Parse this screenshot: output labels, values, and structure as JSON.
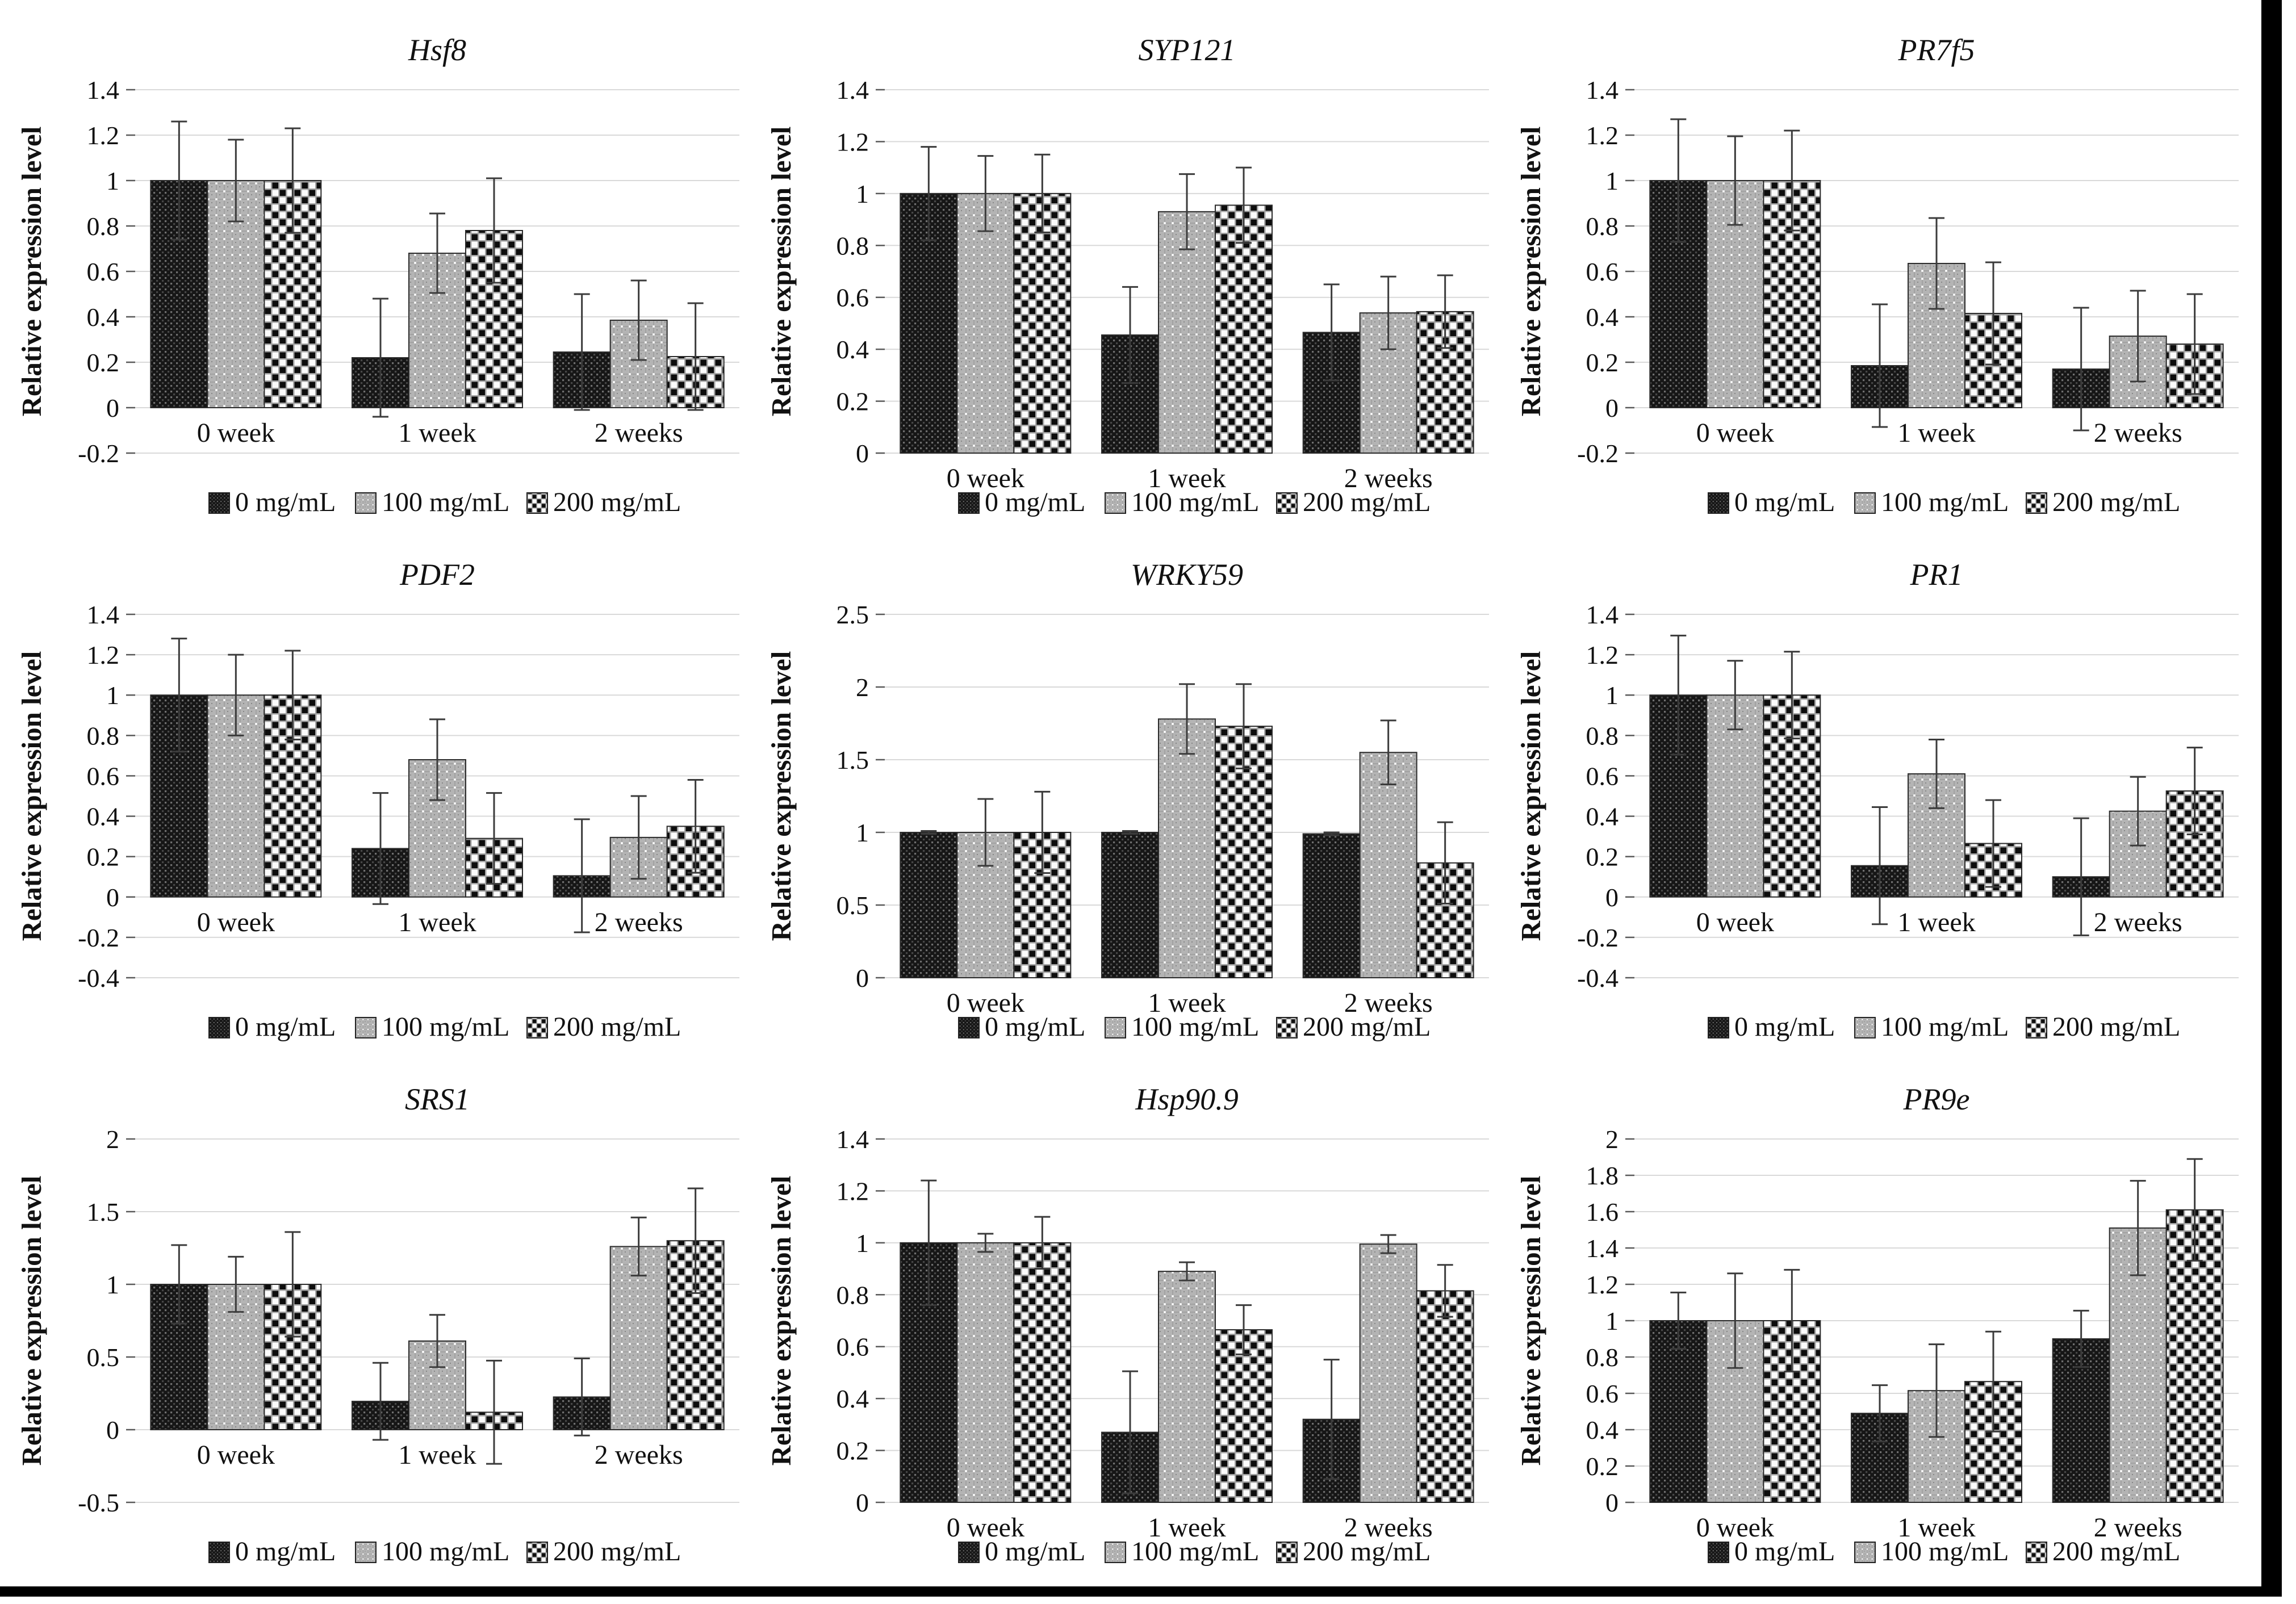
{
  "page": {
    "background": "#ffffff",
    "frame_color": "#000000"
  },
  "colors": {
    "grid": "#d9d9d9",
    "axis_tick": "#595959",
    "text": "#111111",
    "error_bar": "#3b3b3b",
    "bar_outline": "#2b2b2b"
  },
  "patterns": {
    "0 mg/mL": "dark-weave-pattern",
    "100 mg/mL": "light-gray-dot-grid-pattern",
    "200 mg/mL": "black-white-checkerboard-pattern"
  },
  "chart_data": [
    {
      "type": "bar",
      "title": "Hsf8",
      "ylabel": "Relative expression level",
      "categories": [
        "0 week",
        "1 week",
        "2 weeks"
      ],
      "ylim": [
        -0.2,
        1.4
      ],
      "ytick_step": 0.2,
      "grid": true,
      "legend_position": "bottom",
      "series": [
        {
          "name": "0 mg/mL",
          "values": [
            1.0,
            0.22,
            0.245
          ],
          "errors": [
            0.26,
            0.26,
            0.255
          ]
        },
        {
          "name": "100 mg/mL",
          "values": [
            1.0,
            0.68,
            0.385
          ],
          "errors": [
            0.18,
            0.175,
            0.175
          ]
        },
        {
          "name": "200 mg/mL",
          "values": [
            1.0,
            0.78,
            0.225
          ],
          "errors": [
            0.23,
            0.23,
            0.235
          ]
        }
      ]
    },
    {
      "type": "bar",
      "title": "SYP121",
      "ylabel": "Relative expression level",
      "categories": [
        "0 week",
        "1 week",
        "2 weeks"
      ],
      "ylim": [
        0,
        1.4
      ],
      "ytick_step": 0.2,
      "grid": true,
      "legend_position": "bottom",
      "series": [
        {
          "name": "0 mg/mL",
          "values": [
            1.0,
            0.455,
            0.465
          ],
          "errors": [
            0.18,
            0.185,
            0.185
          ]
        },
        {
          "name": "100 mg/mL",
          "values": [
            1.0,
            0.93,
            0.54
          ],
          "errors": [
            0.145,
            0.145,
            0.14
          ]
        },
        {
          "name": "200 mg/mL",
          "values": [
            1.0,
            0.955,
            0.545
          ],
          "errors": [
            0.15,
            0.145,
            0.14
          ]
        }
      ]
    },
    {
      "type": "bar",
      "title": "PR7f5",
      "ylabel": "Relative expression level",
      "categories": [
        "0 week",
        "1 week",
        "2 weeks"
      ],
      "ylim": [
        -0.2,
        1.4
      ],
      "ytick_step": 0.2,
      "grid": true,
      "legend_position": "bottom",
      "series": [
        {
          "name": "0 mg/mL",
          "values": [
            1.0,
            0.185,
            0.17
          ],
          "errors": [
            0.27,
            0.27,
            0.27
          ]
        },
        {
          "name": "100 mg/mL",
          "values": [
            1.0,
            0.635,
            0.315
          ],
          "errors": [
            0.195,
            0.2,
            0.2
          ]
        },
        {
          "name": "200 mg/mL",
          "values": [
            1.0,
            0.415,
            0.28
          ],
          "errors": [
            0.22,
            0.225,
            0.22
          ]
        }
      ]
    },
    {
      "type": "bar",
      "title": "PDF2",
      "ylabel": "Relative expression level",
      "categories": [
        "0 week",
        "1 week",
        "2 weeks"
      ],
      "ylim": [
        -0.4,
        1.4
      ],
      "ytick_step": 0.2,
      "grid": true,
      "legend_position": "bottom",
      "series": [
        {
          "name": "0 mg/mL",
          "values": [
            1.0,
            0.24,
            0.105
          ],
          "errors": [
            0.28,
            0.275,
            0.28
          ]
        },
        {
          "name": "100 mg/mL",
          "values": [
            1.0,
            0.68,
            0.295
          ],
          "errors": [
            0.2,
            0.2,
            0.205
          ]
        },
        {
          "name": "200 mg/mL",
          "values": [
            1.0,
            0.29,
            0.35
          ],
          "errors": [
            0.22,
            0.225,
            0.23
          ]
        }
      ]
    },
    {
      "type": "bar",
      "title": "WRKY59",
      "ylabel": "Relative expression level",
      "categories": [
        "0 week",
        "1 week",
        "2 weeks"
      ],
      "ylim": [
        0,
        2.5
      ],
      "ytick_step": 0.5,
      "grid": true,
      "legend_position": "bottom",
      "series": [
        {
          "name": "0 mg/mL",
          "values": [
            1.0,
            1.0,
            0.99
          ],
          "errors": [
            0.01,
            0.01,
            0.01
          ]
        },
        {
          "name": "100 mg/mL",
          "values": [
            1.0,
            1.78,
            1.55
          ],
          "errors": [
            0.23,
            0.24,
            0.22
          ]
        },
        {
          "name": "200 mg/mL",
          "values": [
            1.0,
            1.73,
            0.79
          ],
          "errors": [
            0.28,
            0.29,
            0.28
          ]
        }
      ]
    },
    {
      "type": "bar",
      "title": "PR1",
      "ylabel": "Relative expression level",
      "categories": [
        "0 week",
        "1 week",
        "2 weeks"
      ],
      "ylim": [
        -0.4,
        1.4
      ],
      "ytick_step": 0.2,
      "grid": true,
      "legend_position": "bottom",
      "series": [
        {
          "name": "0 mg/mL",
          "values": [
            1.0,
            0.155,
            0.1
          ],
          "errors": [
            0.295,
            0.29,
            0.29
          ]
        },
        {
          "name": "100 mg/mL",
          "values": [
            1.0,
            0.61,
            0.425
          ],
          "errors": [
            0.17,
            0.17,
            0.17
          ]
        },
        {
          "name": "200 mg/mL",
          "values": [
            1.0,
            0.265,
            0.525
          ],
          "errors": [
            0.215,
            0.215,
            0.215
          ]
        }
      ]
    },
    {
      "type": "bar",
      "title": "SRS1",
      "ylabel": "Relative expression level",
      "categories": [
        "0 week",
        "1 week",
        "2 weeks"
      ],
      "ylim": [
        -0.5,
        2
      ],
      "ytick_step": 0.5,
      "grid": true,
      "legend_position": "bottom",
      "series": [
        {
          "name": "0 mg/mL",
          "values": [
            1.0,
            0.195,
            0.225
          ],
          "errors": [
            0.27,
            0.265,
            0.265
          ]
        },
        {
          "name": "100 mg/mL",
          "values": [
            1.0,
            0.61,
            1.26
          ],
          "errors": [
            0.19,
            0.18,
            0.2
          ]
        },
        {
          "name": "200 mg/mL",
          "values": [
            1.0,
            0.12,
            1.3
          ],
          "errors": [
            0.36,
            0.355,
            0.36
          ]
        }
      ]
    },
    {
      "type": "bar",
      "title": "Hsp90.9",
      "ylabel": "Relative expression level",
      "categories": [
        "0 week",
        "1 week",
        "2 weeks"
      ],
      "ylim": [
        0,
        1.4
      ],
      "ytick_step": 0.2,
      "grid": true,
      "legend_position": "bottom",
      "series": [
        {
          "name": "0 mg/mL",
          "values": [
            1.0,
            0.27,
            0.32
          ],
          "errors": [
            0.24,
            0.235,
            0.23
          ]
        },
        {
          "name": "100 mg/mL",
          "values": [
            1.0,
            0.89,
            0.995
          ],
          "errors": [
            0.035,
            0.035,
            0.035
          ]
        },
        {
          "name": "200 mg/mL",
          "values": [
            1.0,
            0.665,
            0.815
          ],
          "errors": [
            0.1,
            0.095,
            0.1
          ]
        }
      ]
    },
    {
      "type": "bar",
      "title": "PR9e",
      "ylabel": "Relative expression level",
      "categories": [
        "0 week",
        "1 week",
        "2 weeks"
      ],
      "ylim": [
        0,
        2
      ],
      "ytick_step": 0.2,
      "grid": true,
      "legend_position": "bottom",
      "series": [
        {
          "name": "0 mg/mL",
          "values": [
            1.0,
            0.49,
            0.9
          ],
          "errors": [
            0.155,
            0.155,
            0.155
          ]
        },
        {
          "name": "100 mg/mL",
          "values": [
            1.0,
            0.615,
            1.51
          ],
          "errors": [
            0.26,
            0.255,
            0.26
          ]
        },
        {
          "name": "200 mg/mL",
          "values": [
            1.0,
            0.665,
            1.61
          ],
          "errors": [
            0.28,
            0.275,
            0.28
          ]
        }
      ]
    }
  ]
}
